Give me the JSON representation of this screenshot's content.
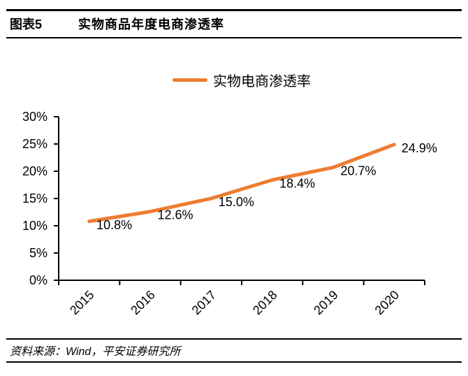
{
  "header": {
    "figure_label": "图表5",
    "title": "实物商品年度电商渗透率"
  },
  "footer": {
    "source_label": "资料来源：Wind，平安证券研究所"
  },
  "colors": {
    "line": "#ED7D31",
    "axis": "#000000",
    "text": "#000000"
  },
  "chart_data": {
    "type": "line",
    "title": "实物商品年度电商渗透率",
    "categories": [
      "2015",
      "2016",
      "2017",
      "2018",
      "2019",
      "2020"
    ],
    "series": [
      {
        "name": "实物电商渗透率",
        "color": "#ED7D31",
        "values": [
          10.8,
          12.6,
          15.0,
          18.4,
          20.7,
          24.9
        ],
        "labels": [
          "10.8%",
          "12.6%",
          "15.0%",
          "18.4%",
          "20.7%",
          "24.9%"
        ]
      }
    ],
    "xlabel": "",
    "ylabel": "",
    "ylim": [
      0,
      30
    ],
    "yticks": [
      0,
      5,
      10,
      15,
      20,
      25,
      30
    ],
    "ytick_labels": [
      "0%",
      "5%",
      "10%",
      "15%",
      "20%",
      "25%",
      "30%"
    ],
    "grid": false,
    "legend_position": "top-center",
    "x_label_rotation": -45
  }
}
